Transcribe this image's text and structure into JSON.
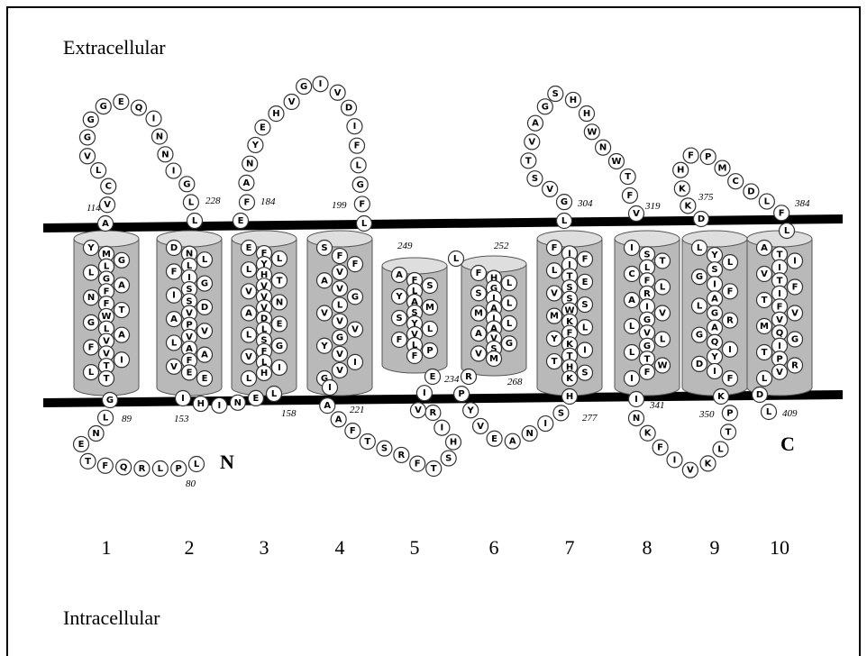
{
  "labels": {
    "extracellular": "Extracellular",
    "intracellular": "Intracellular",
    "n_terminus": "N",
    "c_terminus": "C"
  },
  "helix_numbers": [
    "1",
    "2",
    "3",
    "4",
    "5",
    "6",
    "7",
    "8",
    "9",
    "10"
  ],
  "helices": [
    [
      "Y",
      "M",
      "G",
      "L",
      "L",
      "G",
      "A",
      "F",
      "N",
      "F",
      "T",
      "W",
      "G",
      "L",
      "A",
      "V",
      "F",
      "V",
      "I",
      "T",
      "L",
      "T"
    ],
    [
      "D",
      "N",
      "L",
      "L",
      "F",
      "I",
      "G",
      "S",
      "I",
      "S",
      "D",
      "V",
      "A",
      "P",
      "V",
      "V",
      "L",
      "A",
      "A",
      "F",
      "V",
      "E",
      "E"
    ],
    [
      "E",
      "F",
      "L",
      "Y",
      "L",
      "H",
      "T",
      "V",
      "V",
      "V",
      "N",
      "V",
      "A",
      "D",
      "E",
      "L",
      "L",
      "S",
      "G",
      "F",
      "V",
      "L",
      "I",
      "H",
      "L"
    ],
    [
      "S",
      "F",
      "F",
      "V",
      "A",
      "V",
      "G",
      "L",
      "V",
      "V",
      "V",
      "G",
      "Y",
      "V",
      "I",
      "V",
      "G"
    ],
    [
      "A",
      "F",
      "S",
      "L",
      "Y",
      "A",
      "M",
      "S",
      "S",
      "Y",
      "L",
      "V",
      "F",
      "L",
      "P",
      "F"
    ],
    [
      "F",
      "H",
      "L",
      "G",
      "S",
      "I",
      "L",
      "A",
      "M",
      "I",
      "L",
      "A",
      "A",
      "V",
      "G",
      "S",
      "V",
      "M"
    ],
    [
      "F",
      "I",
      "F",
      "I",
      "L",
      "T",
      "E",
      "S",
      "V",
      "S",
      "S",
      "W",
      "M",
      "K",
      "L",
      "F",
      "Y",
      "K",
      "I",
      "T",
      "T",
      "H",
      "S",
      "K"
    ],
    [
      "I",
      "S",
      "T",
      "L",
      "C",
      "F",
      "L",
      "R",
      "A",
      "I",
      "V",
      "G",
      "L",
      "V",
      "L",
      "G",
      "L",
      "T",
      "W",
      "F",
      "I"
    ],
    [
      "L",
      "Y",
      "L",
      "S",
      "G",
      "I",
      "F",
      "A",
      "L",
      "G",
      "R",
      "A",
      "G",
      "Q",
      "I",
      "Y",
      "D",
      "I",
      "F"
    ],
    [
      "A",
      "T",
      "I",
      "I",
      "V",
      "T",
      "F",
      "I",
      "T",
      "F",
      "V",
      "V",
      "M",
      "Q",
      "G",
      "I",
      "T",
      "P",
      "R",
      "V",
      "L"
    ]
  ],
  "loops": [
    [
      "L",
      "P",
      "L",
      "R",
      "Q",
      "F",
      "T",
      "E",
      "N",
      "L",
      "G"
    ],
    [
      "A",
      "V",
      "C",
      "L",
      "V",
      "G",
      "G",
      "G",
      "E",
      "Q",
      "I",
      "N",
      "N",
      "I",
      "G",
      "L",
      "L"
    ],
    [
      "I",
      "H",
      "I",
      "N",
      "E",
      "L"
    ],
    [
      "E",
      "F",
      "A",
      "N",
      "Y",
      "E",
      "H",
      "V",
      "G",
      "I",
      "V",
      "D",
      "I",
      "F",
      "L",
      "G",
      "F",
      "L"
    ],
    [
      "I",
      "A",
      "A",
      "F",
      "T",
      "S",
      "R",
      "F",
      "T",
      "S",
      "H",
      "I",
      "R",
      "V",
      "I",
      "E"
    ],
    [
      "L"
    ],
    [
      "R",
      "P",
      "Y",
      "V",
      "E",
      "A",
      "N",
      "I",
      "S",
      "H"
    ],
    [
      "L",
      "G",
      "V",
      "S",
      "T",
      "V",
      "A",
      "G",
      "S",
      "H",
      "H",
      "W",
      "N",
      "W",
      "T",
      "F",
      "V"
    ],
    [
      "I",
      "N",
      "K",
      "F",
      "I",
      "V",
      "K",
      "L",
      "T",
      "P",
      "K"
    ],
    [
      "D",
      "K",
      "K",
      "H",
      "F",
      "P",
      "M",
      "C",
      "D",
      "L",
      "F",
      "L"
    ],
    [
      "D",
      "L"
    ]
  ],
  "residue_numbers": [
    "114",
    "228",
    "184",
    "199",
    "249",
    "252",
    "304",
    "319",
    "375",
    "384",
    "89",
    "153",
    "158",
    "221",
    "234",
    "268",
    "277",
    "341",
    "350",
    "409",
    "80"
  ]
}
